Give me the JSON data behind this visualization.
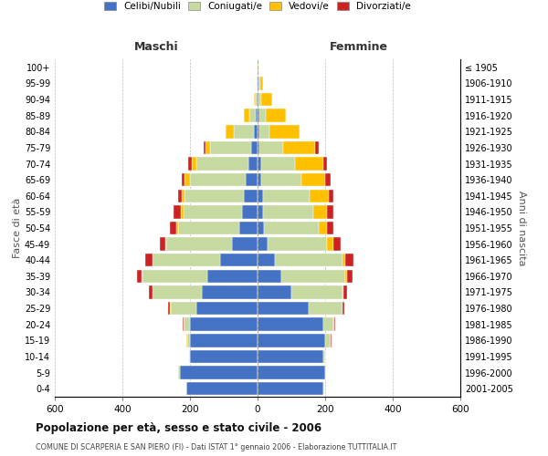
{
  "age_groups": [
    "0-4",
    "5-9",
    "10-14",
    "15-19",
    "20-24",
    "25-29",
    "30-34",
    "35-39",
    "40-44",
    "45-49",
    "50-54",
    "55-59",
    "60-64",
    "65-69",
    "70-74",
    "75-79",
    "80-84",
    "85-89",
    "90-94",
    "95-99",
    "100+"
  ],
  "birth_years": [
    "2001-2005",
    "1996-2000",
    "1991-1995",
    "1986-1990",
    "1981-1985",
    "1976-1980",
    "1971-1975",
    "1966-1970",
    "1961-1965",
    "1956-1960",
    "1951-1955",
    "1946-1950",
    "1941-1945",
    "1936-1940",
    "1931-1935",
    "1926-1930",
    "1921-1925",
    "1916-1920",
    "1911-1915",
    "1906-1910",
    "≤ 1905"
  ],
  "males": {
    "celibi": [
      210,
      230,
      200,
      200,
      200,
      180,
      165,
      150,
      110,
      75,
      55,
      45,
      40,
      35,
      28,
      20,
      10,
      5,
      2,
      1,
      0
    ],
    "coniugati": [
      2,
      4,
      2,
      8,
      18,
      78,
      145,
      190,
      200,
      195,
      180,
      175,
      175,
      165,
      152,
      120,
      60,
      20,
      5,
      2,
      0
    ],
    "vedovi": [
      0,
      0,
      0,
      2,
      2,
      2,
      2,
      2,
      2,
      3,
      5,
      8,
      10,
      15,
      15,
      15,
      25,
      15,
      5,
      0,
      0
    ],
    "divorziati": [
      0,
      0,
      0,
      2,
      2,
      5,
      10,
      15,
      20,
      15,
      20,
      20,
      10,
      10,
      10,
      5,
      0,
      0,
      0,
      0,
      0
    ]
  },
  "females": {
    "nubili": [
      195,
      200,
      195,
      200,
      195,
      150,
      100,
      70,
      50,
      30,
      20,
      15,
      15,
      10,
      10,
      5,
      5,
      5,
      2,
      2,
      0
    ],
    "coniugate": [
      2,
      2,
      5,
      15,
      30,
      100,
      150,
      190,
      200,
      175,
      160,
      150,
      140,
      120,
      100,
      70,
      30,
      20,
      10,
      5,
      0
    ],
    "vedove": [
      0,
      0,
      0,
      2,
      2,
      2,
      5,
      5,
      10,
      20,
      25,
      40,
      55,
      70,
      85,
      95,
      90,
      60,
      30,
      10,
      2
    ],
    "divorziate": [
      0,
      0,
      0,
      2,
      2,
      5,
      10,
      15,
      25,
      20,
      20,
      20,
      15,
      15,
      10,
      10,
      0,
      0,
      0,
      0,
      0
    ]
  },
  "colors": {
    "celibi": "#4472c4",
    "coniugati": "#c5d9a0",
    "vedovi": "#ffc000",
    "divorziati": "#cc2222"
  },
  "title": "Popolazione per età, sesso e stato civile - 2006",
  "subtitle": "COMUNE DI SCARPERIA E SAN PIERO (FI) - Dati ISTAT 1° gennaio 2006 - Elaborazione TUTTITALIA.IT",
  "ylabel_left": "Fasce di età",
  "ylabel_right": "Anni di nascita",
  "xlabel_left": "Maschi",
  "xlabel_right": "Femmine",
  "xlim": 600,
  "legend_labels": [
    "Celibi/Nubili",
    "Coniugati/e",
    "Vedovi/e",
    "Divorziati/e"
  ],
  "background_color": "#ffffff",
  "grid_color": "#bbbbbb"
}
